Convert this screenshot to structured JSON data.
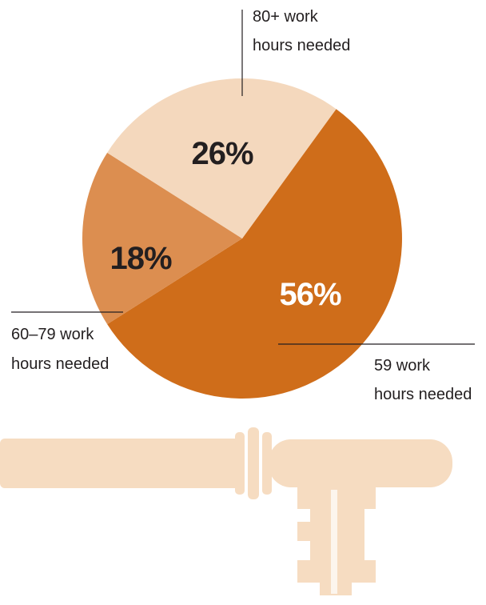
{
  "chart_data": {
    "type": "pie",
    "slices": [
      {
        "value": 56,
        "label": "56%",
        "callout_lines": [
          "59 work",
          "hours needed"
        ],
        "color": "#cf6d1a",
        "label_color": "#ffffff"
      },
      {
        "value": 18,
        "label": "18%",
        "callout_lines": [
          "60–79 work",
          "hours needed"
        ],
        "color": "#dc8e50",
        "label_color": "#231f20"
      },
      {
        "value": 26,
        "label": "26%",
        "callout_lines": [
          "80+ work",
          "hours needed"
        ],
        "color": "#f4d8bd",
        "label_color": "#231f20"
      }
    ]
  },
  "colors": {
    "key_illustration": "#f6dcc1",
    "leader_line": "#231f20",
    "background": "#ffffff"
  },
  "illustration": {
    "icon": "key-icon"
  }
}
